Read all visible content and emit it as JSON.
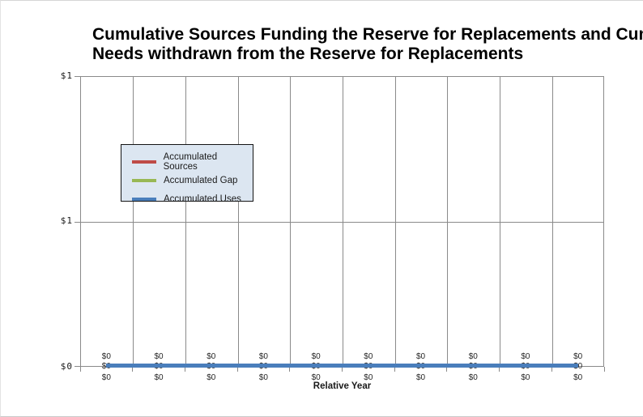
{
  "window": {
    "background": "#ffffff",
    "border_color": "#d6d6d6"
  },
  "chart": {
    "title_line1": "Cumulative Sources Funding the Reserve for Replacements and Cum",
    "title_line2": "Needs withdrawn from the Reserve for Replacements",
    "x_axis_title": "Relative Year",
    "y_tick_labels_top_to_bottom": [
      "$1",
      "$1",
      "$0"
    ],
    "data_label_text": "$0",
    "gridline_color": "#8a8a8a",
    "legend_background": "#dce6f1",
    "legend_border_color": "#141414"
  },
  "chart_data": {
    "type": "line",
    "title": "Cumulative Sources Funding the Reserve for Replacements and Cum / Needs withdrawn from the Reserve for Replacements (title truncated at image edge)",
    "xlabel": "Relative Year",
    "ylabel": "",
    "num_points": 10,
    "x_positions": [
      1,
      2,
      3,
      4,
      5,
      6,
      7,
      8,
      9,
      10
    ],
    "x_tick_labels_visible": false,
    "series": [
      {
        "name": "Accumulated Sources",
        "color": "#bf4b47",
        "values": [
          0,
          0,
          0,
          0,
          0,
          0,
          0,
          0,
          0,
          0
        ]
      },
      {
        "name": "Accumulated Gap",
        "color": "#98b854",
        "values": [
          0,
          0,
          0,
          0,
          0,
          0,
          0,
          0,
          0,
          0
        ]
      },
      {
        "name": "Accumulated Uses",
        "color": "#4a7ebb",
        "values": [
          0,
          0,
          0,
          0,
          0,
          0,
          0,
          0,
          0,
          0
        ]
      }
    ],
    "point_data_labels": "$0 shown above, on, and below the line for every point (all three series overlap at $0)",
    "ylim": [
      0,
      1
    ],
    "y_ticks": [
      0,
      0.5,
      1
    ],
    "y_tick_labels": [
      "$0",
      "$1",
      "$1"
    ],
    "grid": "vertical gridlines at 10 category band boundaries; horizontal gridlines at major y ticks",
    "legend_position": "inside-upper-left",
    "legend_entries": [
      "Accumulated Sources",
      "Accumulated Gap",
      "Accumulated Uses"
    ]
  }
}
